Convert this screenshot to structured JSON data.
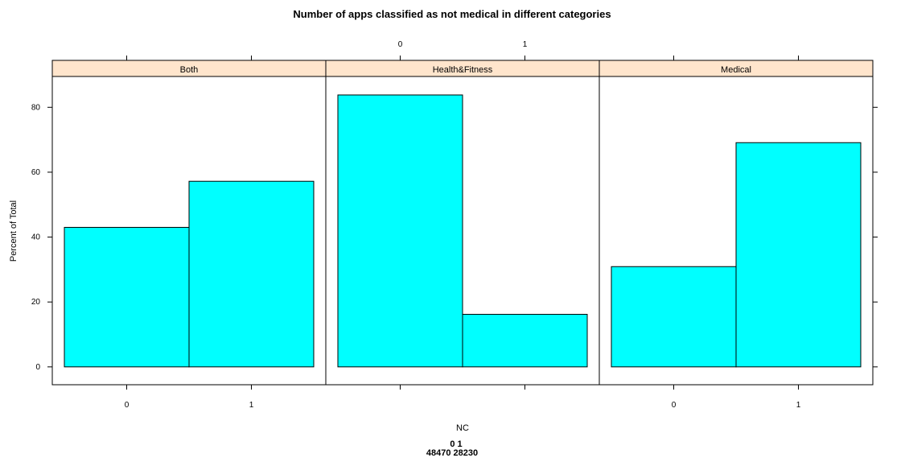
{
  "chart_data": {
    "type": "bar",
    "title": "Number of apps classified as not medical in different categories",
    "xlabel": "NC",
    "ylabel": "Percent of Total",
    "categories": [
      "0",
      "1"
    ],
    "panels": [
      {
        "name": "Both",
        "values": [
          43,
          57.2
        ]
      },
      {
        "name": "Health&Fitness",
        "values": [
          83.8,
          16.2
        ]
      },
      {
        "name": "Medical",
        "values": [
          30.9,
          69.1
        ]
      }
    ],
    "yticks": [
      "0",
      "20",
      "40",
      "60",
      "80"
    ],
    "ylim": [
      -5.5,
      89.5
    ],
    "grid": false,
    "bar_color": "#00FFFF",
    "strip_color": "#FFE5CC",
    "footer": {
      "keys_line": "0 1",
      "counts_line": "48470 28230"
    }
  }
}
